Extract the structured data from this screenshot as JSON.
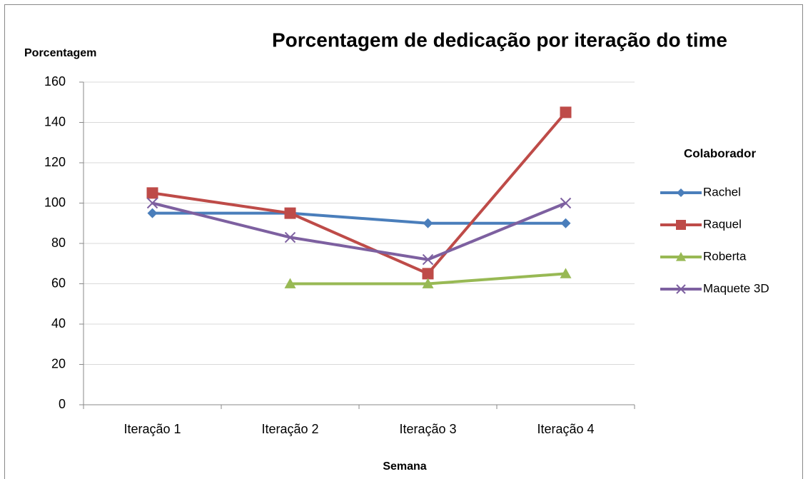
{
  "chart_data": {
    "type": "line",
    "title": "Porcentagem de dedicação por iteração do time",
    "y_label": "Porcentagem",
    "x_label": "Semana",
    "legend_title": "Colaborador",
    "legend": "right",
    "categories": [
      "Iteração 1",
      "Iteração 2",
      "Iteração 3",
      "Iteração 4"
    ],
    "series": [
      {
        "name": "Rachel",
        "color": "#4a7ebb",
        "marker": "diamond",
        "values": [
          95,
          95,
          90,
          90
        ]
      },
      {
        "name": "Raquel",
        "color": "#be4b48",
        "marker": "square",
        "values": [
          105,
          95,
          65,
          145
        ]
      },
      {
        "name": "Roberta",
        "color": "#98b954",
        "marker": "triangle",
        "values": [
          null,
          60,
          60,
          65
        ]
      },
      {
        "name": "Maquete 3D",
        "color": "#7d60a0",
        "marker": "x",
        "values": [
          100,
          83,
          72,
          100
        ]
      }
    ],
    "ylim": [
      0,
      160
    ],
    "yticks": [
      0,
      20,
      40,
      60,
      80,
      100,
      120,
      140,
      160
    ],
    "grid": true
  }
}
